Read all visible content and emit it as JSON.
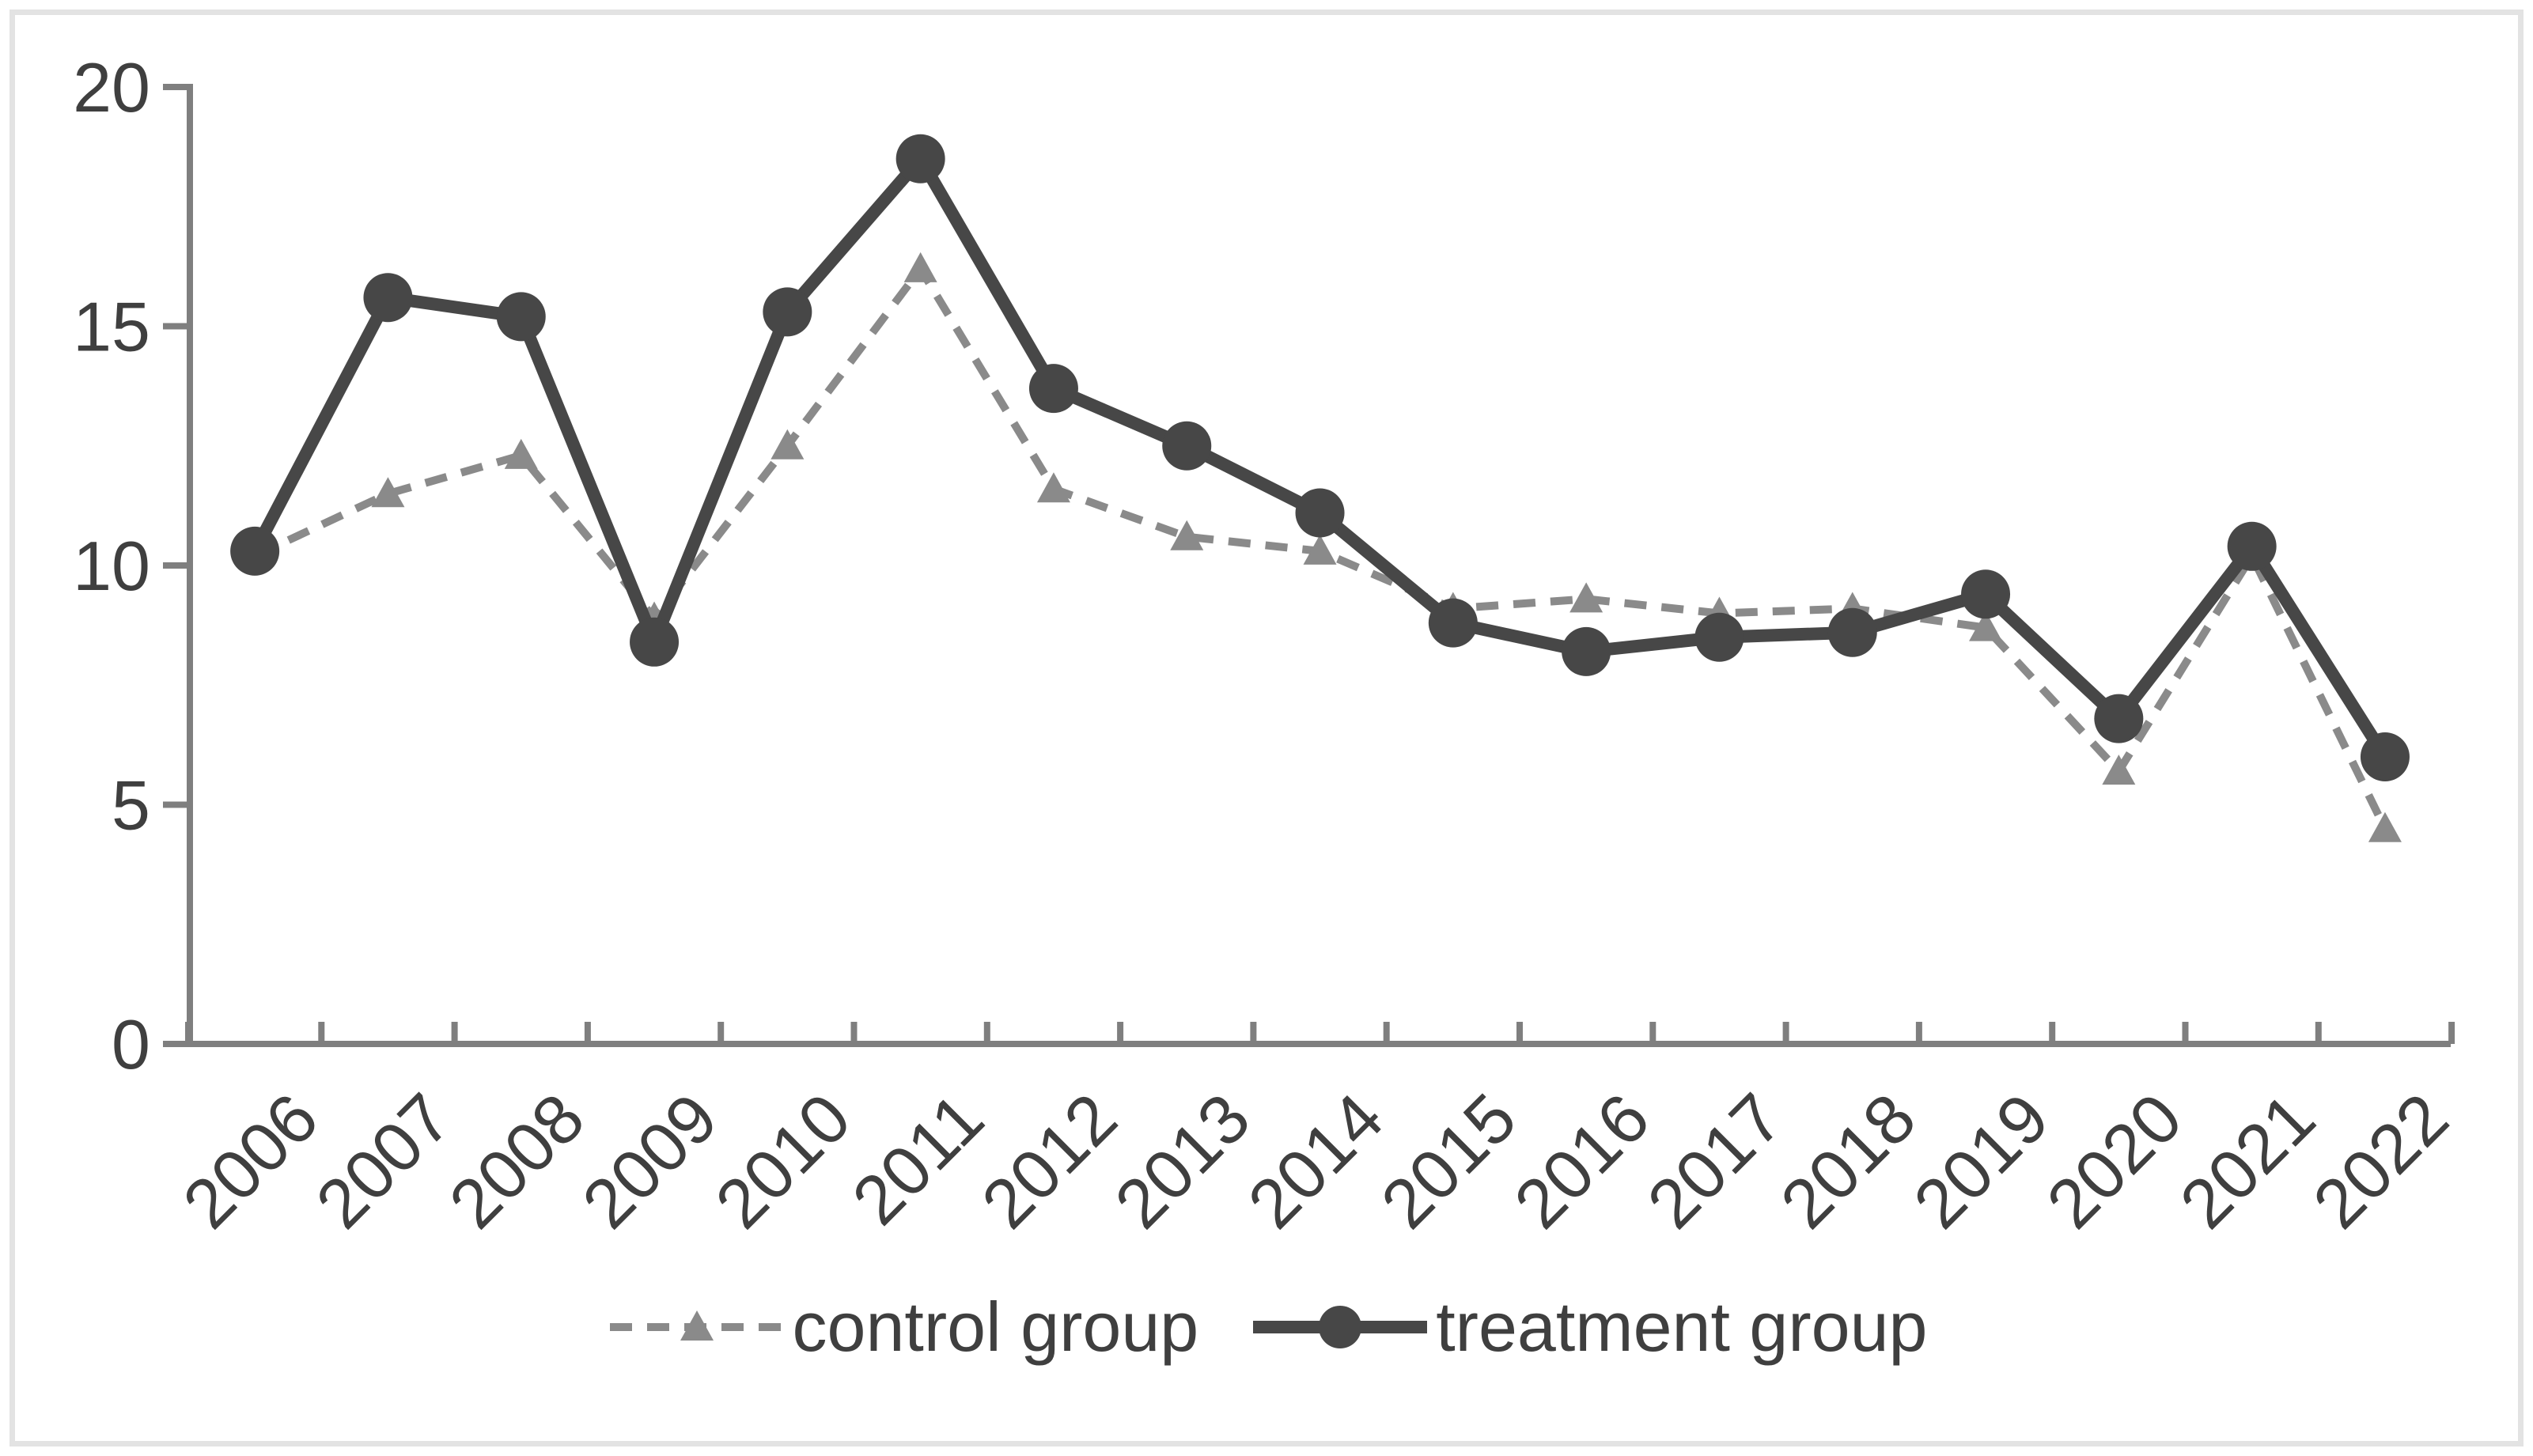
{
  "colors": {
    "treatment": "#474747",
    "control": "#8a8a8a",
    "axis": "#7f7f7f",
    "text": "#3f3f3f",
    "frame": "#e3e3e3",
    "background": "#ffffff"
  },
  "chart_data": {
    "type": "line",
    "title": "",
    "xlabel": "",
    "ylabel": "",
    "categories": [
      "2006",
      "2007",
      "2008",
      "2009",
      "2010",
      "2011",
      "2012",
      "2013",
      "2014",
      "2015",
      "2016",
      "2017",
      "2018",
      "2019",
      "2020",
      "2021",
      "2022"
    ],
    "series": [
      {
        "name": "control group",
        "marker": "triangle",
        "line": "dashed",
        "color": "#8a8a8a",
        "values": [
          10.2,
          11.5,
          12.3,
          8.9,
          12.5,
          16.2,
          11.6,
          10.6,
          10.3,
          9.1,
          9.3,
          9.0,
          9.1,
          8.7,
          5.7,
          10.2,
          4.5
        ]
      },
      {
        "name": "treatment group",
        "marker": "circle",
        "line": "solid",
        "color": "#474747",
        "values": [
          10.3,
          15.6,
          15.2,
          8.4,
          15.3,
          18.5,
          13.7,
          12.5,
          11.1,
          8.8,
          8.2,
          8.5,
          8.6,
          9.4,
          6.8,
          10.4,
          6.0
        ]
      }
    ],
    "ylim": [
      0,
      20
    ],
    "yticks": [
      0,
      5,
      10,
      15,
      20
    ],
    "grid": false,
    "legend_position": "bottom"
  }
}
